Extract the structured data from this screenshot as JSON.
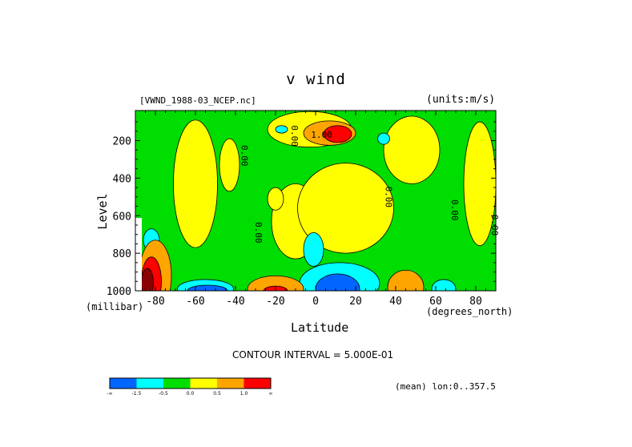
{
  "chart_data": {
    "type": "heatmap",
    "title": "v wind",
    "source_file": "[VWND_1988-03_NCEP.nc]",
    "units": "(units:m/s)",
    "xlabel": "Latitude",
    "x_units": "(degrees_north)",
    "ylabel": "Level",
    "y_units": "(millibar)",
    "xlim": [
      -90,
      90
    ],
    "ylim": [
      1000,
      0
    ],
    "x_ticks": [
      "-80",
      "-60",
      "-40",
      "-20",
      "0",
      "20",
      "40",
      "60",
      "80"
    ],
    "x_tick_values": [
      -80,
      -60,
      -40,
      -20,
      0,
      20,
      40,
      60,
      80
    ],
    "y_ticks": [
      "200",
      "400",
      "600",
      "800",
      "1000"
    ],
    "y_tick_values": [
      200,
      400,
      600,
      800,
      1000
    ],
    "contour_interval": "CONTOUR INTERVAL = 5.000E-01",
    "contour_labels": [
      {
        "text": "0.00",
        "lat": -37,
        "lev": 280
      },
      {
        "text": "0.00",
        "lat": -30,
        "lev": 690
      },
      {
        "text": "0.00",
        "lat": -12,
        "lev": 175
      },
      {
        "text": "1.00",
        "lat": 3,
        "lev": 185
      },
      {
        "text": "0.00",
        "lat": 35,
        "lev": 500
      },
      {
        "text": "0.00",
        "lat": 68,
        "lev": 570
      },
      {
        "text": "0.00",
        "lat": 88,
        "lev": 650
      }
    ],
    "legend_colors": [
      "#0066ff",
      "#00ffff",
      "#00dd00",
      "#ffff00",
      "#ffa500",
      "#ff0000"
    ],
    "legend_labels": [
      "-∞",
      "-1.5",
      "-0.5",
      "0.0",
      "0.5",
      "1.0",
      "∞"
    ],
    "regions": [
      {
        "color": "#ffff00",
        "lat": -3,
        "lev": 140,
        "rx": 21,
        "ry": 95
      },
      {
        "color": "#ffa500",
        "lat": 7,
        "lev": 160,
        "rx": 13,
        "ry": 65
      },
      {
        "color": "#ff0000",
        "lat": 11,
        "lev": 165,
        "rx": 7,
        "ry": 45
      },
      {
        "color": "#ffff00",
        "lat": -60,
        "lev": 430,
        "rx": 11,
        "ry": 340
      },
      {
        "color": "#ffff00",
        "lat": -43,
        "lev": 330,
        "rx": 5,
        "ry": 140
      },
      {
        "color": "#ffff00",
        "lat": -10,
        "lev": 630,
        "rx": 12,
        "ry": 200
      },
      {
        "color": "#ffff00",
        "lat": 15,
        "lev": 560,
        "rx": 24,
        "ry": 240
      },
      {
        "color": "#ffff00",
        "lat": 48,
        "lev": 250,
        "rx": 14,
        "ry": 180
      },
      {
        "color": "#ffff00",
        "lat": 82,
        "lev": 430,
        "rx": 8,
        "ry": 330
      },
      {
        "color": "#ffff00",
        "lat": -20,
        "lev": 510,
        "rx": 4,
        "ry": 60
      },
      {
        "color": "#00ffff",
        "lat": -1,
        "lev": 780,
        "rx": 5,
        "ry": 90
      },
      {
        "color": "#00ffff",
        "lat": -82,
        "lev": 730,
        "rx": 4,
        "ry": 60
      },
      {
        "color": "#00ffff",
        "lat": 34,
        "lev": 190,
        "rx": 3,
        "ry": 30
      },
      {
        "color": "#00ffff",
        "lat": -17,
        "lev": 140,
        "rx": 3,
        "ry": 20
      },
      {
        "color": "#00ffff",
        "lat": 12,
        "lev": 960,
        "rx": 20,
        "ry": 110
      },
      {
        "color": "#0066ff",
        "lat": 11,
        "lev": 990,
        "rx": 11,
        "ry": 80
      },
      {
        "color": "#00ffff",
        "lat": -55,
        "lev": 990,
        "rx": 14,
        "ry": 50
      },
      {
        "color": "#0066ff",
        "lat": -54,
        "lev": 1000,
        "rx": 10,
        "ry": 30
      },
      {
        "color": "#00ffff",
        "lat": 64,
        "lev": 990,
        "rx": 6,
        "ry": 50
      },
      {
        "color": "#ffa500",
        "lat": -20,
        "lev": 990,
        "rx": 14,
        "ry": 70
      },
      {
        "color": "#ff0000",
        "lat": -20,
        "lev": 1000,
        "rx": 6,
        "ry": 25
      },
      {
        "color": "#ffa500",
        "lat": 45,
        "lev": 980,
        "rx": 9,
        "ry": 90
      },
      {
        "color": "#ffa500",
        "lat": -80,
        "lev": 920,
        "rx": 8,
        "ry": 190
      },
      {
        "color": "#ff0000",
        "lat": -82,
        "lev": 950,
        "rx": 5,
        "ry": 130
      },
      {
        "color": "#8b0000",
        "lat": -84,
        "lev": 960,
        "rx": 3,
        "ry": 80
      }
    ]
  },
  "footer": {
    "mean_label": "(mean) lon:0..357.5"
  }
}
